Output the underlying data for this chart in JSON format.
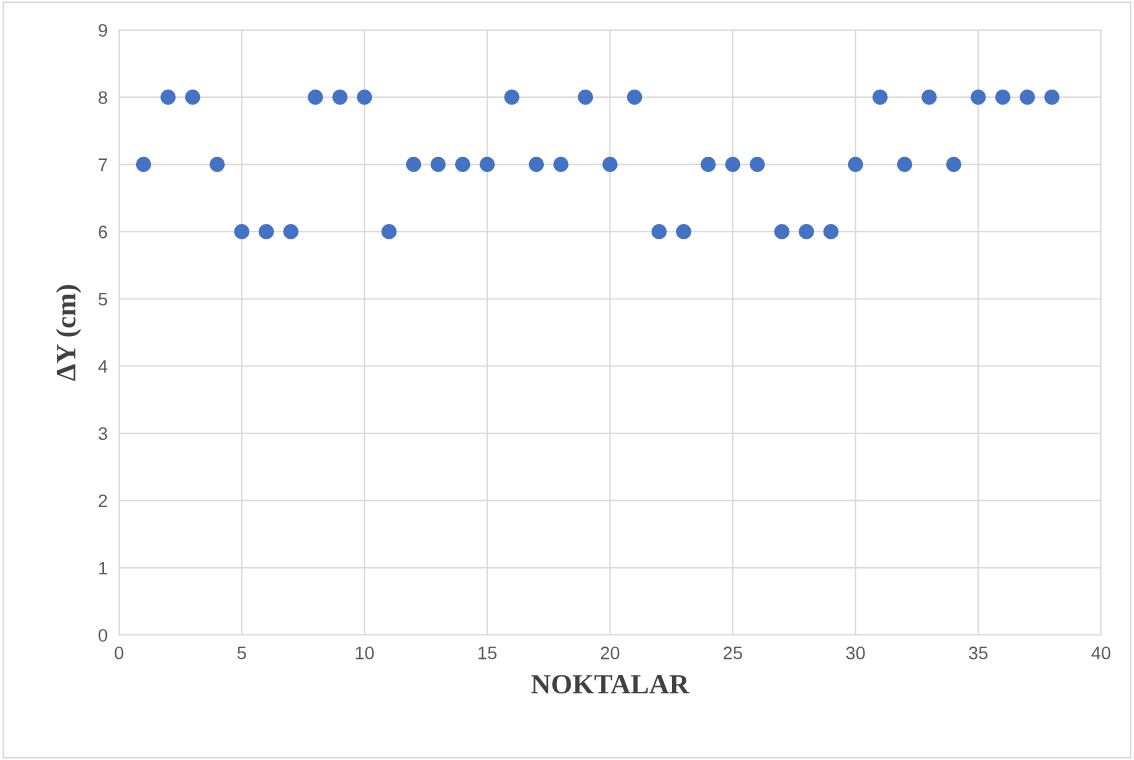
{
  "chart_data": {
    "type": "scatter",
    "xlabel": "NOKTALAR",
    "ylabel": "ΔY (cm)",
    "x": [
      1,
      2,
      3,
      4,
      5,
      6,
      7,
      8,
      9,
      10,
      11,
      12,
      13,
      14,
      15,
      16,
      17,
      18,
      19,
      20,
      21,
      22,
      23,
      24,
      25,
      26,
      27,
      28,
      29,
      30,
      31,
      32,
      33,
      34,
      35,
      36,
      37,
      38
    ],
    "series": [
      {
        "color": "#4472c4",
        "values": [
          7,
          8,
          8,
          7,
          6,
          6,
          6,
          8,
          8,
          8,
          6,
          7,
          7,
          7,
          7,
          8,
          7,
          7,
          8,
          7,
          8,
          6,
          6,
          7,
          7,
          7,
          6,
          6,
          6,
          7,
          8,
          7,
          8,
          7,
          8,
          8,
          8,
          8
        ]
      }
    ],
    "xlim": [
      0,
      40
    ],
    "xticks": [
      0,
      5,
      10,
      15,
      20,
      25,
      30,
      35,
      40
    ],
    "ylim": [
      0,
      9
    ],
    "yticks": [
      0,
      1,
      2,
      3,
      4,
      5,
      6,
      7,
      8,
      9
    ],
    "grid": true,
    "marker": "circle",
    "legend": false
  }
}
